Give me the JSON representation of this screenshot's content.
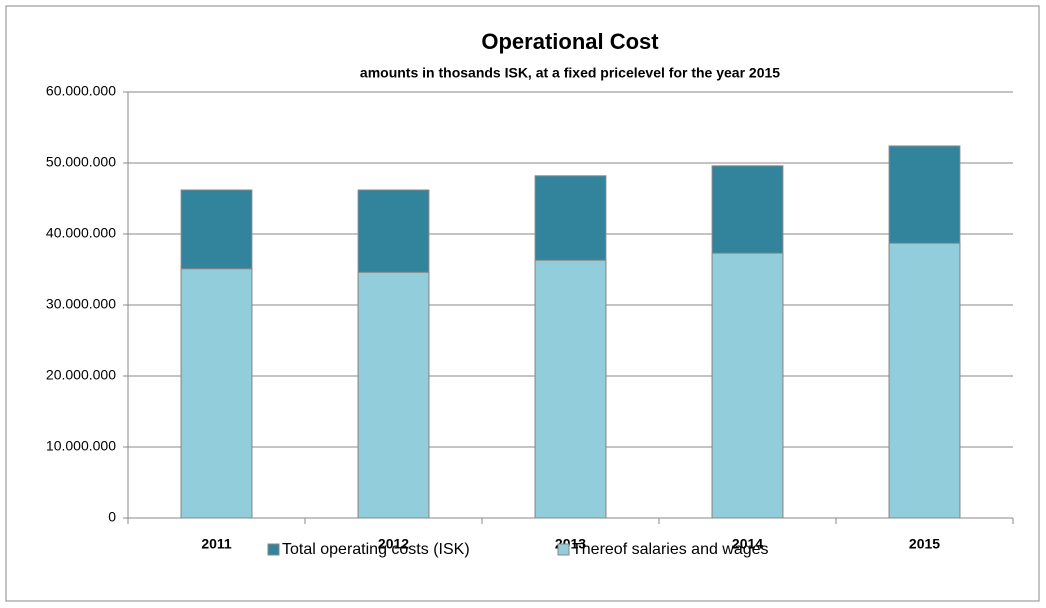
{
  "chart_data": {
    "type": "bar",
    "overlap": true,
    "title": "Operational Cost",
    "subtitle": "amounts in thosands ISK, at a fixed pricelevel for the year 2015",
    "categories": [
      "2011",
      "2012",
      "2013",
      "2014",
      "2015"
    ],
    "series": [
      {
        "name": "Total operating costs (ISK)",
        "color": "#31849b",
        "values": [
          46200000,
          46200000,
          48200000,
          49600000,
          52400000
        ]
      },
      {
        "name": "Thereof salaries and wages",
        "color": "#92cddc",
        "values": [
          35100000,
          34600000,
          36300000,
          37300000,
          38700000
        ]
      }
    ],
    "ylim": [
      0,
      60000000
    ],
    "yticks": [
      0,
      {
        "value": 10000000,
        "label": "10.000.000"
      },
      {
        "value": 20000000,
        "label": "20.000.000"
      },
      {
        "value": 30000000,
        "label": "30.000.000"
      },
      {
        "value": 40000000,
        "label": "40.000.000"
      },
      {
        "value": 50000000,
        "label": "50.000.000"
      },
      {
        "value": 60000000,
        "label": "60.000.000"
      }
    ],
    "grid": true,
    "legend": "bottom"
  }
}
